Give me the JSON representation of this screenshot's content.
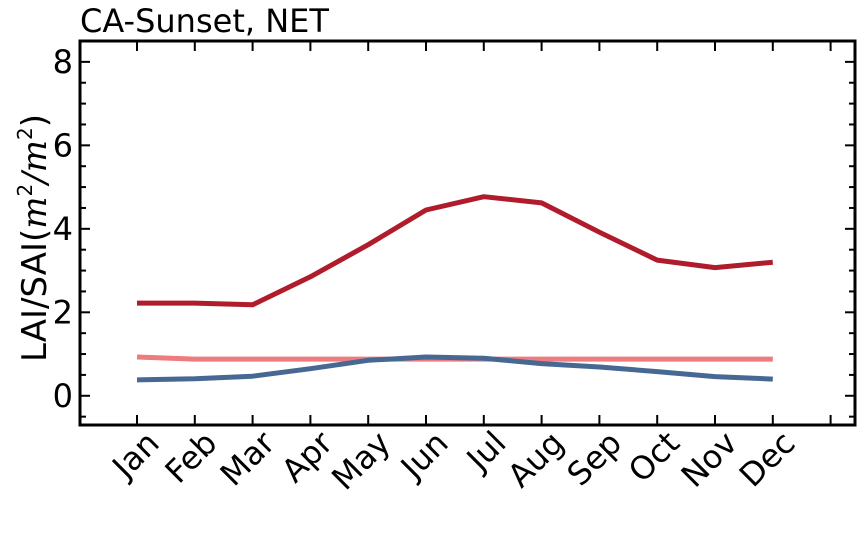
{
  "chart_data": {
    "type": "line",
    "title": "CA-Sunset, NET",
    "xlabel": "",
    "ylabel": {
      "prefix": "LAI/SAI(",
      "m1": "m",
      "sup1": "2",
      "slash": "/",
      "m2": "m",
      "sup2": "2",
      "suffix": ")"
    },
    "categories": [
      "Jan",
      "Feb",
      "Mar",
      "Apr",
      "May",
      "Jun",
      "Jul",
      "Aug",
      "Sep",
      "Oct",
      "Nov",
      "Dec"
    ],
    "ylim": [
      -0.7,
      8.5
    ],
    "yticks": [
      0,
      2,
      4,
      6,
      8
    ],
    "yticks_minor": [
      -0.5,
      0.5,
      1,
      1.5,
      2.5,
      3,
      3.5,
      4.5,
      5,
      5.5,
      6.5,
      7,
      7.5,
      8.5
    ],
    "grid": false,
    "series": [
      {
        "color": "#b01c2b",
        "values": [
          2.22,
          2.22,
          2.18,
          2.85,
          3.62,
          4.45,
          4.77,
          4.62,
          3.92,
          3.25,
          3.07,
          3.2
        ]
      },
      {
        "color": "#ee7b7e",
        "values": [
          0.93,
          0.88,
          0.88,
          0.88,
          0.88,
          0.88,
          0.88,
          0.88,
          0.88,
          0.88,
          0.88,
          0.88
        ]
      },
      {
        "color": "#476892",
        "values": [
          0.38,
          0.41,
          0.47,
          0.65,
          0.85,
          0.93,
          0.9,
          0.77,
          0.69,
          0.58,
          0.46,
          0.4
        ]
      }
    ]
  }
}
